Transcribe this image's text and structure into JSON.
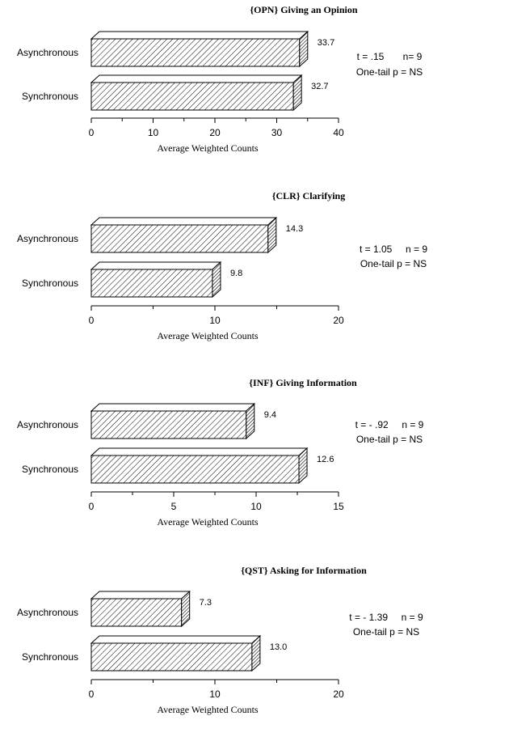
{
  "chart_data": [
    {
      "type": "bar",
      "orientation": "horizontal",
      "style": "3d-hatched",
      "title": "{OPN} Giving an Opinion",
      "categories": [
        "Asynchronous",
        "Synchronous"
      ],
      "values": [
        33.7,
        32.7
      ],
      "value_labels": [
        "33.7",
        "32.7"
      ],
      "xlim": [
        0,
        40
      ],
      "xticks": [
        "0",
        "10",
        "20",
        "30",
        "40"
      ],
      "xlabel": "Average Weighted Counts",
      "stat_line1": "t = .15       n= 9",
      "stat_line2": "One-tail p = NS"
    },
    {
      "type": "bar",
      "orientation": "horizontal",
      "style": "3d-hatched",
      "title": "{CLR} Clarifying",
      "categories": [
        "Asynchronous",
        "Synchronous"
      ],
      "values": [
        14.3,
        9.8
      ],
      "value_labels": [
        "14.3",
        "9.8"
      ],
      "xlim": [
        0,
        20
      ],
      "xticks": [
        "0",
        "10",
        "20"
      ],
      "xlabel": "Average Weighted Counts",
      "stat_line1": "t = 1.05     n = 9",
      "stat_line2": "One-tail p = NS"
    },
    {
      "type": "bar",
      "orientation": "horizontal",
      "style": "3d-hatched",
      "title": "{INF} Giving Information",
      "categories": [
        "Asynchronous",
        "Synchronous"
      ],
      "values": [
        9.4,
        12.6
      ],
      "value_labels": [
        "9.4",
        "12.6"
      ],
      "xlim": [
        0,
        15
      ],
      "xticks": [
        "0",
        "5",
        "10",
        "15"
      ],
      "xlabel": "Average Weighted Counts",
      "stat_line1": "t = - .92     n = 9",
      "stat_line2": "One-tail p = NS"
    },
    {
      "type": "bar",
      "orientation": "horizontal",
      "style": "3d-hatched",
      "title": "{QST} Asking for Information",
      "categories": [
        "Asynchronous",
        "Synchronous"
      ],
      "values": [
        7.3,
        13.0
      ],
      "value_labels": [
        "7.3",
        "13.0"
      ],
      "xlim": [
        0,
        20
      ],
      "xticks": [
        "0",
        "10",
        "20"
      ],
      "xlabel": "Average Weighted Counts",
      "stat_line1": "t = - 1.39     n = 9",
      "stat_line2": "One-tail p = NS"
    }
  ]
}
